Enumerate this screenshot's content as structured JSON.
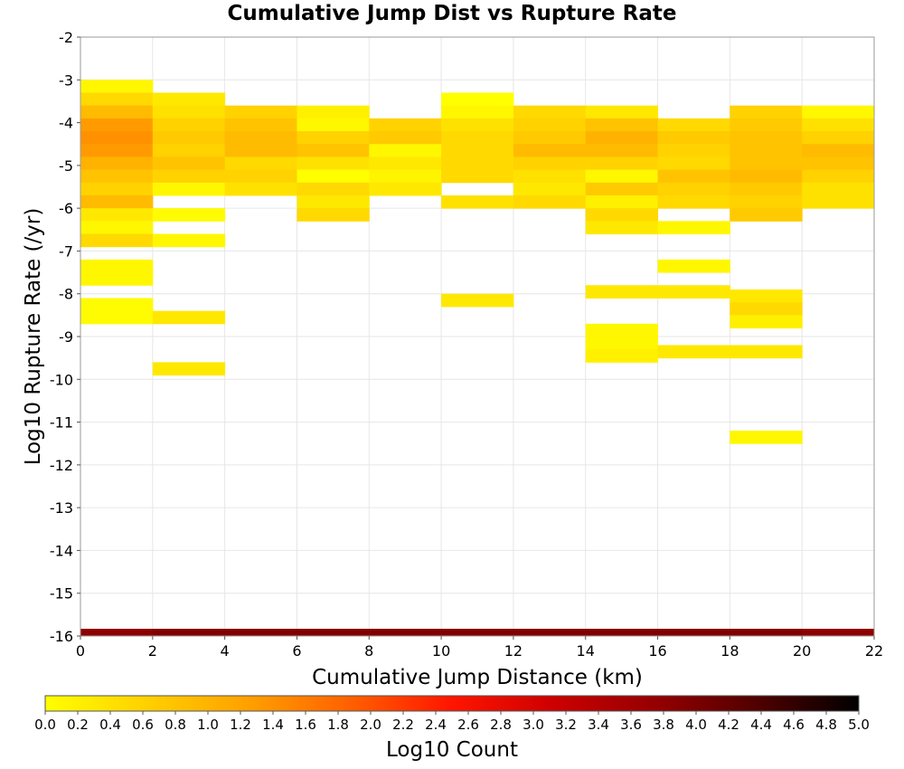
{
  "chart_data": {
    "type": "heatmap",
    "title": "Cumulative Jump Dist vs Rupture Rate",
    "xlabel": "Cumulative Jump Distance (km)",
    "ylabel": "Log10 Rupture Rate (/yr)",
    "xlim": [
      0,
      22
    ],
    "ylim": [
      -16,
      -2
    ],
    "x_ticks": [
      "0",
      "2",
      "4",
      "6",
      "8",
      "10",
      "12",
      "14",
      "16",
      "18",
      "20",
      "22"
    ],
    "y_ticks": [
      "-2",
      "-3",
      "-4",
      "-5",
      "-6",
      "-7",
      "-8",
      "-9",
      "-10",
      "-11",
      "-12",
      "-13",
      "-14",
      "-15",
      "-16"
    ],
    "x_bin_width": 2,
    "y_bin_height": 0.3,
    "grid": true,
    "colorbar": {
      "label": "Log10 Count",
      "range": [
        0,
        5
      ],
      "ticks": [
        "0.0",
        "0.2",
        "0.4",
        "0.6",
        "0.8",
        "1.0",
        "1.2",
        "1.4",
        "1.6",
        "1.8",
        "2.0",
        "2.2",
        "2.4",
        "2.6",
        "2.8",
        "3.0",
        "3.2",
        "3.4",
        "3.6",
        "3.8",
        "4.0",
        "4.2",
        "4.4",
        "4.6",
        "4.8",
        "5.0"
      ],
      "colors": [
        "#ffff00",
        "#ffd000",
        "#ffa000",
        "#ff6000",
        "#ff1500",
        "#cc0000",
        "#950000",
        "#500000",
        "#000000"
      ]
    },
    "cells": [
      {
        "x": 0,
        "y": -3.0,
        "v": 0.1
      },
      {
        "x": 0,
        "y": -3.3,
        "v": 0.5
      },
      {
        "x": 0,
        "y": -3.6,
        "v": 0.9
      },
      {
        "x": 0,
        "y": -3.9,
        "v": 1.3
      },
      {
        "x": 0,
        "y": -4.2,
        "v": 1.4
      },
      {
        "x": 0,
        "y": -4.5,
        "v": 1.3
      },
      {
        "x": 0,
        "y": -4.8,
        "v": 1.0
      },
      {
        "x": 0,
        "y": -5.1,
        "v": 0.8
      },
      {
        "x": 0,
        "y": -5.4,
        "v": 0.6
      },
      {
        "x": 0,
        "y": -5.7,
        "v": 0.9
      },
      {
        "x": 0,
        "y": -6.0,
        "v": 0.3
      },
      {
        "x": 0,
        "y": -6.3,
        "v": 0.1
      },
      {
        "x": 0,
        "y": -6.6,
        "v": 0.5
      },
      {
        "x": 0,
        "y": -7.2,
        "v": 0.1
      },
      {
        "x": 0,
        "y": -7.5,
        "v": 0.1
      },
      {
        "x": 0,
        "y": -8.1,
        "v": 0.05
      },
      {
        "x": 0,
        "y": -8.4,
        "v": 0.05
      },
      {
        "x": 2,
        "y": -3.3,
        "v": 0.3
      },
      {
        "x": 2,
        "y": -3.6,
        "v": 0.4
      },
      {
        "x": 2,
        "y": -3.9,
        "v": 0.6
      },
      {
        "x": 2,
        "y": -4.2,
        "v": 0.7
      },
      {
        "x": 2,
        "y": -4.5,
        "v": 0.6
      },
      {
        "x": 2,
        "y": -4.8,
        "v": 0.8
      },
      {
        "x": 2,
        "y": -5.1,
        "v": 0.6
      },
      {
        "x": 2,
        "y": -5.4,
        "v": 0.1
      },
      {
        "x": 2,
        "y": -6.0,
        "v": 0.05
      },
      {
        "x": 2,
        "y": -6.6,
        "v": 0.1
      },
      {
        "x": 2,
        "y": -8.4,
        "v": 0.3
      },
      {
        "x": 2,
        "y": -9.6,
        "v": 0.3
      },
      {
        "x": 4,
        "y": -3.6,
        "v": 0.6
      },
      {
        "x": 4,
        "y": -3.9,
        "v": 0.8
      },
      {
        "x": 4,
        "y": -4.2,
        "v": 0.9
      },
      {
        "x": 4,
        "y": -4.5,
        "v": 0.9
      },
      {
        "x": 4,
        "y": -4.8,
        "v": 0.5
      },
      {
        "x": 4,
        "y": -5.1,
        "v": 0.6
      },
      {
        "x": 4,
        "y": -5.4,
        "v": 0.4
      },
      {
        "x": 6,
        "y": -3.6,
        "v": 0.2
      },
      {
        "x": 6,
        "y": -3.9,
        "v": 0.1
      },
      {
        "x": 6,
        "y": -4.2,
        "v": 0.6
      },
      {
        "x": 6,
        "y": -4.5,
        "v": 0.8
      },
      {
        "x": 6,
        "y": -4.8,
        "v": 0.4
      },
      {
        "x": 6,
        "y": -5.1,
        "v": 0.0
      },
      {
        "x": 6,
        "y": -5.4,
        "v": 0.5
      },
      {
        "x": 6,
        "y": -5.7,
        "v": 0.3
      },
      {
        "x": 6,
        "y": -6.0,
        "v": 0.5
      },
      {
        "x": 8,
        "y": -3.9,
        "v": 0.6
      },
      {
        "x": 8,
        "y": -4.2,
        "v": 0.7
      },
      {
        "x": 8,
        "y": -4.5,
        "v": 0.1
      },
      {
        "x": 8,
        "y": -4.8,
        "v": 0.3
      },
      {
        "x": 8,
        "y": -5.1,
        "v": 0.15
      },
      {
        "x": 8,
        "y": -5.4,
        "v": 0.3
      },
      {
        "x": 10,
        "y": -3.3,
        "v": 0.0
      },
      {
        "x": 10,
        "y": -3.6,
        "v": 0.1
      },
      {
        "x": 10,
        "y": -3.9,
        "v": 0.4
      },
      {
        "x": 10,
        "y": -4.2,
        "v": 0.5
      },
      {
        "x": 10,
        "y": -4.5,
        "v": 0.5
      },
      {
        "x": 10,
        "y": -4.8,
        "v": 0.5
      },
      {
        "x": 10,
        "y": -5.1,
        "v": 0.5
      },
      {
        "x": 10,
        "y": -5.7,
        "v": 0.4
      },
      {
        "x": 10,
        "y": -8.0,
        "v": 0.3
      },
      {
        "x": 12,
        "y": -3.6,
        "v": 0.5
      },
      {
        "x": 12,
        "y": -3.9,
        "v": 0.6
      },
      {
        "x": 12,
        "y": -4.2,
        "v": 0.7
      },
      {
        "x": 12,
        "y": -4.5,
        "v": 0.9
      },
      {
        "x": 12,
        "y": -4.8,
        "v": 0.6
      },
      {
        "x": 12,
        "y": -5.1,
        "v": 0.4
      },
      {
        "x": 12,
        "y": -5.4,
        "v": 0.3
      },
      {
        "x": 12,
        "y": -5.7,
        "v": 0.5
      },
      {
        "x": 14,
        "y": -3.6,
        "v": 0.3
      },
      {
        "x": 14,
        "y": -3.9,
        "v": 0.8
      },
      {
        "x": 14,
        "y": -4.2,
        "v": 1.0
      },
      {
        "x": 14,
        "y": -4.5,
        "v": 0.9
      },
      {
        "x": 14,
        "y": -4.8,
        "v": 0.6
      },
      {
        "x": 14,
        "y": -5.1,
        "v": 0.1
      },
      {
        "x": 14,
        "y": -5.4,
        "v": 0.7
      },
      {
        "x": 14,
        "y": -5.7,
        "v": 0.2
      },
      {
        "x": 14,
        "y": -6.0,
        "v": 0.5
      },
      {
        "x": 14,
        "y": -6.3,
        "v": 0.3
      },
      {
        "x": 14,
        "y": -7.8,
        "v": 0.3
      },
      {
        "x": 14,
        "y": -8.7,
        "v": 0.1
      },
      {
        "x": 14,
        "y": -9.0,
        "v": 0.1
      },
      {
        "x": 14,
        "y": -9.3,
        "v": 0.2
      },
      {
        "x": 16,
        "y": -3.9,
        "v": 0.5
      },
      {
        "x": 16,
        "y": -4.2,
        "v": 0.7
      },
      {
        "x": 16,
        "y": -4.5,
        "v": 0.6
      },
      {
        "x": 16,
        "y": -4.8,
        "v": 0.5
      },
      {
        "x": 16,
        "y": -5.1,
        "v": 0.8
      },
      {
        "x": 16,
        "y": -5.4,
        "v": 0.6
      },
      {
        "x": 16,
        "y": -5.7,
        "v": 0.5
      },
      {
        "x": 16,
        "y": -6.3,
        "v": 0.1
      },
      {
        "x": 16,
        "y": -7.2,
        "v": 0.1
      },
      {
        "x": 16,
        "y": -7.8,
        "v": 0.3
      },
      {
        "x": 16,
        "y": -9.2,
        "v": 0.3
      },
      {
        "x": 18,
        "y": -3.6,
        "v": 0.6
      },
      {
        "x": 18,
        "y": -3.9,
        "v": 0.7
      },
      {
        "x": 18,
        "y": -4.2,
        "v": 0.8
      },
      {
        "x": 18,
        "y": -4.5,
        "v": 0.8
      },
      {
        "x": 18,
        "y": -4.8,
        "v": 0.8
      },
      {
        "x": 18,
        "y": -5.1,
        "v": 0.9
      },
      {
        "x": 18,
        "y": -5.4,
        "v": 0.7
      },
      {
        "x": 18,
        "y": -5.7,
        "v": 0.6
      },
      {
        "x": 18,
        "y": -6.0,
        "v": 0.7
      },
      {
        "x": 18,
        "y": -7.9,
        "v": 0.3
      },
      {
        "x": 18,
        "y": -8.2,
        "v": 0.5
      },
      {
        "x": 18,
        "y": -8.5,
        "v": 0.2
      },
      {
        "x": 18,
        "y": -9.2,
        "v": 0.3
      },
      {
        "x": 18,
        "y": -11.2,
        "v": 0.1
      },
      {
        "x": 20,
        "y": -3.6,
        "v": 0.1
      },
      {
        "x": 20,
        "y": -3.9,
        "v": 0.4
      },
      {
        "x": 20,
        "y": -4.2,
        "v": 0.6
      },
      {
        "x": 20,
        "y": -4.5,
        "v": 0.9
      },
      {
        "x": 20,
        "y": -4.8,
        "v": 0.8
      },
      {
        "x": 20,
        "y": -5.1,
        "v": 0.6
      },
      {
        "x": 20,
        "y": -5.4,
        "v": 0.4
      },
      {
        "x": 20,
        "y": -5.7,
        "v": 0.4
      }
    ],
    "bottom_row": {
      "y": -16.0,
      "values": [
        3.8,
        3.9,
        3.9,
        3.9,
        3.9,
        3.9,
        3.9,
        3.9,
        3.9,
        3.9,
        3.8
      ]
    }
  }
}
